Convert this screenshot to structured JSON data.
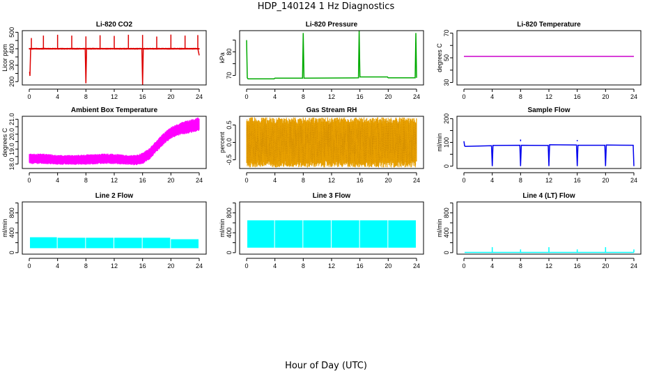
{
  "title": "HDP_140124  1 Hz Diagnostics",
  "xlabel": "Hour of Day (UTC)",
  "chart_data": [
    {
      "type": "line",
      "title": "Li-820 CO2",
      "ylabel": "Licor ppm",
      "xlim": [
        0,
        24
      ],
      "ylim": [
        180,
        510
      ],
      "xticks": [
        0,
        4,
        8,
        12,
        16,
        20,
        24
      ],
      "yticks": [
        200,
        250,
        300,
        350,
        400,
        450,
        500
      ],
      "ytick_labels": [
        "200",
        "",
        "300",
        "",
        "400",
        "",
        "500"
      ],
      "color": "#dd0000",
      "band": {
        "x": [
          0,
          24
        ],
        "low": [
          395,
          395
        ],
        "high": [
          405,
          405
        ]
      },
      "x": [
        0.05,
        0.1,
        0.2,
        0.3,
        1.0,
        2.0,
        3.0,
        4.0,
        5.0,
        6.0,
        7.0,
        7.9,
        8.0,
        8.1,
        9.0,
        10.0,
        11.0,
        12.0,
        13.0,
        14.0,
        15.0,
        15.9,
        16.0,
        16.1,
        17.0,
        18.0,
        19.0,
        20.0,
        21.0,
        22.0,
        23.0,
        23.8,
        24.0
      ],
      "y": [
        260,
        235,
        400,
        398,
        400,
        402,
        400,
        401,
        400,
        399,
        401,
        400,
        190,
        400,
        402,
        400,
        401,
        400,
        399,
        401,
        400,
        400,
        180,
        400,
        401,
        400,
        399,
        400,
        401,
        400,
        399,
        400,
        360
      ],
      "spikes": [
        {
          "x": 0.3,
          "y": 465
        },
        {
          "x": 2.0,
          "y": 480
        },
        {
          "x": 4.0,
          "y": 485
        },
        {
          "x": 6.0,
          "y": 480
        },
        {
          "x": 8.0,
          "y": 475
        },
        {
          "x": 10.0,
          "y": 482
        },
        {
          "x": 12.0,
          "y": 478
        },
        {
          "x": 14.0,
          "y": 485
        },
        {
          "x": 16.0,
          "y": 484
        },
        {
          "x": 18.0,
          "y": 474
        },
        {
          "x": 20.0,
          "y": 486
        },
        {
          "x": 22.0,
          "y": 480
        },
        {
          "x": 23.8,
          "y": 483
        }
      ]
    },
    {
      "type": "line",
      "title": "Li-820 Pressure",
      "ylabel": "kPa",
      "xlim": [
        0,
        24
      ],
      "ylim": [
        66,
        89
      ],
      "xticks": [
        0,
        4,
        8,
        12,
        16,
        20,
        24
      ],
      "yticks": [
        70,
        75,
        80,
        85
      ],
      "ytick_labels": [
        "70",
        "",
        "80",
        ""
      ],
      "color": "#00aa00",
      "x": [
        0.0,
        0.05,
        0.1,
        0.2,
        3.9,
        4.0,
        7.9,
        8.0,
        8.1,
        15.8,
        15.9,
        16.0,
        16.1,
        19.9,
        20.0,
        23.8,
        23.9,
        24.0
      ],
      "y": [
        85,
        77,
        69,
        68.6,
        68.6,
        68.9,
        68.9,
        88,
        68.9,
        69.0,
        89,
        69.4,
        69.4,
        69.4,
        69.0,
        69.0,
        88,
        69.0
      ]
    },
    {
      "type": "line",
      "title": "Li-820 Temperature",
      "ylabel": "degrees C",
      "xlim": [
        0,
        24
      ],
      "ylim": [
        28,
        72
      ],
      "xticks": [
        0,
        4,
        8,
        12,
        16,
        20,
        24
      ],
      "yticks": [
        30,
        40,
        50,
        60,
        70
      ],
      "ytick_labels": [
        "30",
        "",
        "50",
        "",
        "70"
      ],
      "color": "#cc00cc",
      "x": [
        0,
        24
      ],
      "y": [
        51.1,
        51.1
      ]
    },
    {
      "type": "line",
      "title": "Ambient Box Temperature",
      "ylabel": "degrees C",
      "xlim": [
        0,
        24
      ],
      "ylim": [
        17.7,
        21.2
      ],
      "xticks": [
        0,
        4,
        8,
        12,
        16,
        20,
        24
      ],
      "yticks": [
        18.0,
        18.5,
        19.0,
        19.5,
        20.0,
        20.5,
        21.0
      ],
      "ytick_labels": [
        "18.0",
        "",
        "19.0",
        "",
        "20.0",
        "",
        "21.0"
      ],
      "color": "#ff00ff",
      "band": {
        "x": [
          0,
          2,
          4,
          6,
          8,
          10,
          12,
          14,
          15,
          16,
          17,
          18,
          19,
          20,
          21,
          22,
          23,
          23.5,
          24
        ],
        "low": [
          18.0,
          18.0,
          17.95,
          17.95,
          17.95,
          18.0,
          18.0,
          17.95,
          17.9,
          18.0,
          18.3,
          18.8,
          19.3,
          19.7,
          19.9,
          20.0,
          20.1,
          20.15,
          20.2
        ],
        "high": [
          18.7,
          18.7,
          18.6,
          18.6,
          18.65,
          18.7,
          18.7,
          18.6,
          18.6,
          18.75,
          19.1,
          19.6,
          20.1,
          20.5,
          20.7,
          20.9,
          21.0,
          21.1,
          21.15
        ]
      }
    },
    {
      "type": "line",
      "title": "Gas Stream RH",
      "ylabel": "percent",
      "xlim": [
        0,
        24
      ],
      "ylim": [
        -0.75,
        0.75
      ],
      "xticks": [
        0,
        4,
        8,
        12,
        16,
        20,
        24
      ],
      "yticks": [
        -0.5,
        0.0,
        0.5
      ],
      "ytick_labels": [
        "-0.5",
        "0.0",
        "0.5"
      ],
      "color": "#e8a000",
      "band": {
        "x": [
          0,
          24
        ],
        "low": [
          -0.72,
          -0.72
        ],
        "high": [
          0.72,
          0.72
        ]
      }
    },
    {
      "type": "line",
      "title": "Sample Flow",
      "ylabel": "ml/min",
      "xlim": [
        0,
        24
      ],
      "ylim": [
        -10,
        210
      ],
      "xticks": [
        0,
        4,
        8,
        12,
        16,
        20,
        24
      ],
      "yticks": [
        0,
        50,
        100,
        150,
        200
      ],
      "ytick_labels": [
        "0",
        "",
        "100",
        "",
        "200"
      ],
      "color": "#0000ee",
      "x": [
        0.0,
        0.1,
        0.2,
        3.9,
        4.0,
        4.1,
        7.9,
        8.0,
        8.1,
        11.9,
        12.0,
        12.1,
        15.9,
        16.0,
        16.1,
        19.9,
        20.0,
        20.1,
        23.9,
        24.0
      ],
      "y": [
        105,
        85,
        83,
        86,
        0,
        87,
        88,
        0,
        88,
        87,
        0,
        90,
        89,
        0,
        88,
        88,
        0,
        89,
        88,
        0
      ],
      "spikes": [
        {
          "x": 8.0,
          "y": 112
        },
        {
          "x": 16.0,
          "y": 110
        }
      ]
    },
    {
      "type": "line",
      "title": "Line 2 Flow",
      "ylabel": "ml/min",
      "xlim": [
        0,
        24
      ],
      "ylim": [
        -30,
        1020
      ],
      "xticks": [
        0,
        4,
        8,
        12,
        16,
        20,
        24
      ],
      "yticks": [
        0,
        200,
        400,
        600,
        800,
        1000
      ],
      "ytick_labels": [
        "0",
        "",
        "400",
        "",
        "800",
        ""
      ],
      "color": "#00ffff",
      "segments": [
        {
          "x0": 0.1,
          "x1": 3.9,
          "low": 90,
          "high": 310
        },
        {
          "x0": 4.0,
          "x1": 7.9,
          "low": 90,
          "high": 300
        },
        {
          "x0": 8.0,
          "x1": 11.9,
          "low": 90,
          "high": 300
        },
        {
          "x0": 12.0,
          "x1": 15.9,
          "low": 90,
          "high": 300
        },
        {
          "x0": 16.0,
          "x1": 19.9,
          "low": 90,
          "high": 300
        },
        {
          "x0": 20.0,
          "x1": 23.9,
          "low": 90,
          "high": 270
        }
      ]
    },
    {
      "type": "line",
      "title": "Line 3 Flow",
      "ylabel": "ml/min",
      "xlim": [
        0,
        24
      ],
      "ylim": [
        -30,
        1020
      ],
      "xticks": [
        0,
        4,
        8,
        12,
        16,
        20,
        24
      ],
      "yticks": [
        0,
        200,
        400,
        600,
        800,
        1000
      ],
      "ytick_labels": [
        "0",
        "",
        "400",
        "",
        "800",
        ""
      ],
      "color": "#00ffff",
      "segments": [
        {
          "x0": 0.1,
          "x1": 3.9,
          "low": 100,
          "high": 650
        },
        {
          "x0": 4.0,
          "x1": 7.9,
          "low": 100,
          "high": 650
        },
        {
          "x0": 8.0,
          "x1": 11.9,
          "low": 100,
          "high": 650
        },
        {
          "x0": 12.0,
          "x1": 15.9,
          "low": 100,
          "high": 650
        },
        {
          "x0": 16.0,
          "x1": 19.9,
          "low": 100,
          "high": 650
        },
        {
          "x0": 20.0,
          "x1": 23.9,
          "low": 100,
          "high": 650
        }
      ]
    },
    {
      "type": "line",
      "title": "Line 4 (LT) Flow",
      "ylabel": "ml/min",
      "xlim": [
        0,
        24
      ],
      "ylim": [
        -30,
        1020
      ],
      "xticks": [
        0,
        4,
        8,
        12,
        16,
        20,
        24
      ],
      "yticks": [
        0,
        200,
        400,
        600,
        800,
        1000
      ],
      "ytick_labels": [
        "0",
        "",
        "400",
        "",
        "800",
        ""
      ],
      "color": "#00ffff",
      "x": [
        0.1,
        24
      ],
      "y": [
        5,
        5
      ],
      "spikes": [
        {
          "x": 4.0,
          "y": 110
        },
        {
          "x": 8.0,
          "y": 65
        },
        {
          "x": 12.0,
          "y": 110
        },
        {
          "x": 16.0,
          "y": 65
        },
        {
          "x": 20.0,
          "y": 110
        },
        {
          "x": 24.0,
          "y": 65
        }
      ]
    }
  ]
}
